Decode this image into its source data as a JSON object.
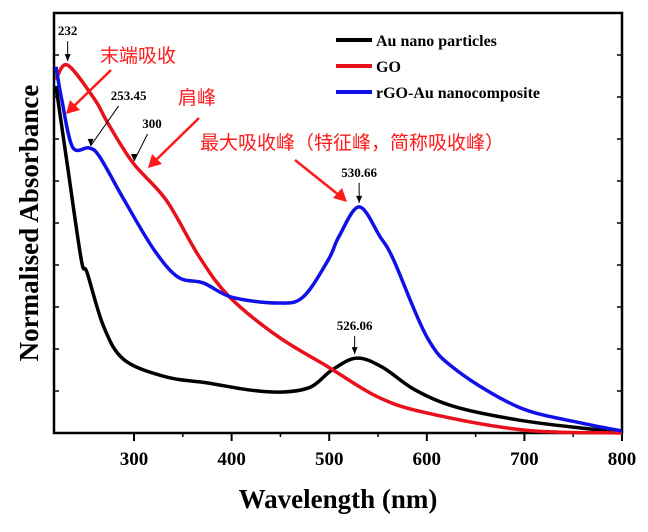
{
  "chart_data": {
    "type": "line",
    "title": "",
    "xlabel": "Wavelength (nm)",
    "ylabel": "Normalised Absorbance",
    "xlim": [
      218,
      800
    ],
    "ylim": [
      0,
      1
    ],
    "x_ticks": [
      "300",
      "400",
      "500",
      "600",
      "700",
      "800"
    ],
    "y_tick_labels_shown": false,
    "grid": false,
    "legend_position": "top-right",
    "series": [
      {
        "name": "Au nano particles",
        "color": "#000000",
        "x": [
          220,
          232,
          246,
          252,
          269,
          290,
          333,
          375,
          418,
          452,
          481,
          503,
          528,
          554,
          588,
          630,
          694,
          758,
          800
        ],
        "y": [
          0.83,
          0.636,
          0.414,
          0.383,
          0.254,
          0.175,
          0.134,
          0.12,
          0.103,
          0.098,
          0.11,
          0.151,
          0.179,
          0.158,
          0.103,
          0.062,
          0.031,
          0.012,
          0.003
        ]
      },
      {
        "name": "GO",
        "color": "#e8101a",
        "x": [
          220,
          232,
          260,
          273,
          299,
          333,
          367,
          398,
          448,
          499,
          550,
          600,
          700,
          800
        ],
        "y": [
          0.845,
          0.88,
          0.797,
          0.742,
          0.646,
          0.557,
          0.421,
          0.325,
          0.23,
          0.158,
          0.086,
          0.048,
          0.007,
          0.0
        ]
      },
      {
        "name": "rGO-Au nanocomposite",
        "color": "#1010e8",
        "x": [
          220,
          226,
          237,
          254,
          265,
          290,
          320,
          345,
          371,
          400,
          447,
          473,
          499,
          510,
          530.66,
          552,
          566,
          600,
          630,
          694,
          758,
          800
        ],
        "y": [
          0.876,
          0.797,
          0.684,
          0.682,
          0.66,
          0.557,
          0.44,
          0.373,
          0.359,
          0.325,
          0.311,
          0.325,
          0.414,
          0.47,
          0.541,
          0.47,
          0.414,
          0.23,
          0.151,
          0.062,
          0.024,
          0.005
        ]
      }
    ],
    "peak_labels": [
      {
        "text": "232",
        "x": 232,
        "y": 0.88
      },
      {
        "text": "253.45",
        "x": 253.45,
        "y": 0.682
      },
      {
        "text": "300",
        "x": 300,
        "y": 0.646
      },
      {
        "text": "530.66",
        "x": 530.66,
        "y": 0.541
      },
      {
        "text": "526.06",
        "x": 526.06,
        "y": 0.179
      }
    ],
    "annotations": [
      {
        "text": "末端吸收",
        "color": "#ff1a1a"
      },
      {
        "text": "肩峰",
        "color": "#ff1a1a"
      },
      {
        "text": "最大吸收峰（特征峰，简称吸收峰）",
        "color": "#ff1a1a"
      }
    ]
  }
}
